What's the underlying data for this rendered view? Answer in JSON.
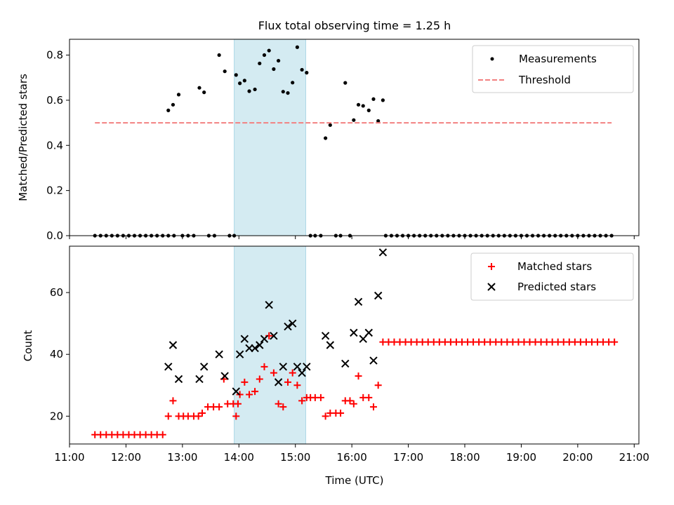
{
  "figure_title": "Flux total observing time = 1.25 h",
  "colors": {
    "measurement": "#000000",
    "threshold": "#f28080",
    "matched": "#ff0000",
    "predicted": "#000000",
    "highlight": "#add8e6"
  },
  "chart_data": [
    {
      "type": "scatter",
      "title": "Flux total observing time = 1.25 h",
      "xlabel": "",
      "ylabel": "Matched/Predicted stars",
      "xlim": [
        "11:00",
        "21:05"
      ],
      "ylim": [
        0,
        0.87
      ],
      "yticks": [
        "0.0",
        "0.2",
        "0.4",
        "0.6",
        "0.8"
      ],
      "grid": false,
      "legend": {
        "placement": "top-right",
        "entries": [
          "Measurements",
          "Threshold"
        ]
      },
      "highlight_span": [
        "13:55",
        "15:11"
      ],
      "series": [
        {
          "name": "Measurements",
          "marker": "dot",
          "points": [
            [
              "11:27",
              0
            ],
            [
              "11:33",
              0
            ],
            [
              "11:39",
              0
            ],
            [
              "11:45",
              0
            ],
            [
              "11:51",
              0
            ],
            [
              "11:57",
              0
            ],
            [
              "12:03",
              0
            ],
            [
              "12:09",
              0
            ],
            [
              "12:15",
              0
            ],
            [
              "12:21",
              0
            ],
            [
              "12:27",
              0
            ],
            [
              "12:33",
              0
            ],
            [
              "12:39",
              0
            ],
            [
              "12:45",
              0
            ],
            [
              "12:51",
              0
            ],
            [
              "12:45",
              0.555
            ],
            [
              "12:50",
              0.58
            ],
            [
              "12:56",
              0.625
            ],
            [
              "13:00",
              0
            ],
            [
              "13:06",
              0
            ],
            [
              "13:12",
              0
            ],
            [
              "13:18",
              0.655
            ],
            [
              "13:23",
              0.635
            ],
            [
              "13:28",
              0
            ],
            [
              "13:34",
              0
            ],
            [
              "13:39",
              0.8
            ],
            [
              "13:45",
              0.728
            ],
            [
              "13:50",
              0
            ],
            [
              "13:55",
              0
            ],
            [
              "13:57",
              0.712
            ],
            [
              "14:01",
              0.675
            ],
            [
              "14:06",
              0.687
            ],
            [
              "14:11",
              0.64
            ],
            [
              "14:17",
              0.648
            ],
            [
              "14:22",
              0.763
            ],
            [
              "14:27",
              0.8
            ],
            [
              "14:32",
              0.82
            ],
            [
              "14:37",
              0.738
            ],
            [
              "14:42",
              0.775
            ],
            [
              "14:47",
              0.638
            ],
            [
              "14:52",
              0.632
            ],
            [
              "14:57",
              0.678
            ],
            [
              "15:02",
              0.835
            ],
            [
              "15:07",
              0.735
            ],
            [
              "15:12",
              0.722
            ],
            [
              "15:16",
              0
            ],
            [
              "15:21",
              0
            ],
            [
              "15:27",
              0
            ],
            [
              "15:32",
              0.432
            ],
            [
              "15:37",
              0.49
            ],
            [
              "15:43",
              0
            ],
            [
              "15:48",
              0
            ],
            [
              "15:53",
              0.677
            ],
            [
              "15:58",
              0
            ],
            [
              "16:02",
              0.512
            ],
            [
              "16:07",
              0.58
            ],
            [
              "16:12",
              0.575
            ],
            [
              "16:18",
              0.555
            ],
            [
              "16:23",
              0.605
            ],
            [
              "16:28",
              0.508
            ],
            [
              "16:33",
              0.6
            ],
            [
              "16:36",
              0
            ],
            [
              "16:42",
              0
            ],
            [
              "16:48",
              0
            ],
            [
              "16:54",
              0
            ],
            [
              "17:00",
              0
            ],
            [
              "17:06",
              0
            ],
            [
              "17:12",
              0
            ],
            [
              "17:18",
              0
            ],
            [
              "17:24",
              0
            ],
            [
              "17:30",
              0
            ],
            [
              "17:36",
              0
            ],
            [
              "17:42",
              0
            ],
            [
              "17:48",
              0
            ],
            [
              "17:54",
              0
            ],
            [
              "18:00",
              0
            ],
            [
              "18:06",
              0
            ],
            [
              "18:12",
              0
            ],
            [
              "18:18",
              0
            ],
            [
              "18:24",
              0
            ],
            [
              "18:30",
              0
            ],
            [
              "18:36",
              0
            ],
            [
              "18:42",
              0
            ],
            [
              "18:48",
              0
            ],
            [
              "18:54",
              0
            ],
            [
              "19:00",
              0
            ],
            [
              "19:06",
              0
            ],
            [
              "19:12",
              0
            ],
            [
              "19:18",
              0
            ],
            [
              "19:24",
              0
            ],
            [
              "19:30",
              0
            ],
            [
              "19:36",
              0
            ],
            [
              "19:42",
              0
            ],
            [
              "19:48",
              0
            ],
            [
              "19:54",
              0
            ],
            [
              "20:00",
              0
            ],
            [
              "20:06",
              0
            ],
            [
              "20:12",
              0
            ],
            [
              "20:18",
              0
            ],
            [
              "20:24",
              0
            ],
            [
              "20:30",
              0
            ],
            [
              "20:36",
              0
            ]
          ]
        },
        {
          "name": "Threshold",
          "style": "dashed",
          "points": [
            [
              "11:27",
              0.5
            ],
            [
              "20:36",
              0.5
            ]
          ]
        }
      ]
    },
    {
      "type": "scatter",
      "title": "",
      "xlabel": "Time (UTC)",
      "ylabel": "Count",
      "xlim": [
        "11:00",
        "21:05"
      ],
      "ylim": [
        11,
        75
      ],
      "xticks": [
        "11:00",
        "12:00",
        "13:00",
        "14:00",
        "15:00",
        "16:00",
        "17:00",
        "18:00",
        "19:00",
        "20:00",
        "21:00"
      ],
      "yticks": [
        "20",
        "40",
        "60"
      ],
      "grid": false,
      "legend": {
        "placement": "top-right",
        "entries": [
          "Matched stars",
          "Predicted stars"
        ]
      },
      "highlight_span": [
        "13:55",
        "15:11"
      ],
      "series": [
        {
          "name": "Matched stars",
          "marker": "plus",
          "points": [
            [
              "11:27",
              14
            ],
            [
              "11:33",
              14
            ],
            [
              "11:39",
              14
            ],
            [
              "11:45",
              14
            ],
            [
              "11:51",
              14
            ],
            [
              "11:57",
              14
            ],
            [
              "12:03",
              14
            ],
            [
              "12:09",
              14
            ],
            [
              "12:15",
              14
            ],
            [
              "12:21",
              14
            ],
            [
              "12:27",
              14
            ],
            [
              "12:33",
              14
            ],
            [
              "12:39",
              14
            ],
            [
              "12:45",
              20
            ],
            [
              "12:50",
              25
            ],
            [
              "12:56",
              20
            ],
            [
              "13:01",
              20
            ],
            [
              "13:06",
              20
            ],
            [
              "13:12",
              20
            ],
            [
              "13:17",
              20
            ],
            [
              "13:21",
              21
            ],
            [
              "13:27",
              23
            ],
            [
              "13:33",
              23
            ],
            [
              "13:39",
              23
            ],
            [
              "13:44",
              32
            ],
            [
              "13:48",
              24
            ],
            [
              "13:54",
              24
            ],
            [
              "13:59",
              24
            ],
            [
              "13:57",
              20
            ],
            [
              "14:01",
              27
            ],
            [
              "14:06",
              31
            ],
            [
              "14:11",
              27
            ],
            [
              "14:17",
              28
            ],
            [
              "14:22",
              32
            ],
            [
              "14:27",
              36
            ],
            [
              "14:32",
              46
            ],
            [
              "14:37",
              34
            ],
            [
              "14:42",
              24
            ],
            [
              "14:47",
              23
            ],
            [
              "14:52",
              31
            ],
            [
              "14:57",
              34
            ],
            [
              "15:02",
              30
            ],
            [
              "15:07",
              25
            ],
            [
              "15:12",
              26
            ],
            [
              "15:16",
              26
            ],
            [
              "15:21",
              26
            ],
            [
              "15:27",
              26
            ],
            [
              "15:32",
              20
            ],
            [
              "15:37",
              21
            ],
            [
              "15:43",
              21
            ],
            [
              "15:48",
              21
            ],
            [
              "15:53",
              25
            ],
            [
              "15:58",
              25
            ],
            [
              "16:02",
              24
            ],
            [
              "16:07",
              33
            ],
            [
              "16:12",
              26
            ],
            [
              "16:18",
              26
            ],
            [
              "16:23",
              23
            ],
            [
              "16:28",
              30
            ],
            [
              "16:33",
              44
            ],
            [
              "16:39",
              44
            ],
            [
              "16:45",
              44
            ],
            [
              "16:51",
              44
            ],
            [
              "16:57",
              44
            ],
            [
              "17:03",
              44
            ],
            [
              "17:09",
              44
            ],
            [
              "17:15",
              44
            ],
            [
              "17:21",
              44
            ],
            [
              "17:27",
              44
            ],
            [
              "17:33",
              44
            ],
            [
              "17:39",
              44
            ],
            [
              "17:45",
              44
            ],
            [
              "17:51",
              44
            ],
            [
              "17:57",
              44
            ],
            [
              "18:03",
              44
            ],
            [
              "18:09",
              44
            ],
            [
              "18:15",
              44
            ],
            [
              "18:21",
              44
            ],
            [
              "18:27",
              44
            ],
            [
              "18:33",
              44
            ],
            [
              "18:39",
              44
            ],
            [
              "18:45",
              44
            ],
            [
              "18:51",
              44
            ],
            [
              "18:57",
              44
            ],
            [
              "19:03",
              44
            ],
            [
              "19:09",
              44
            ],
            [
              "19:15",
              44
            ],
            [
              "19:21",
              44
            ],
            [
              "19:27",
              44
            ],
            [
              "19:33",
              44
            ],
            [
              "19:39",
              44
            ],
            [
              "19:45",
              44
            ],
            [
              "19:51",
              44
            ],
            [
              "19:57",
              44
            ],
            [
              "20:03",
              44
            ],
            [
              "20:09",
              44
            ],
            [
              "20:15",
              44
            ],
            [
              "20:21",
              44
            ],
            [
              "20:27",
              44
            ],
            [
              "20:33",
              44
            ],
            [
              "20:39",
              44
            ]
          ]
        },
        {
          "name": "Predicted stars",
          "marker": "x",
          "points": [
            [
              "12:45",
              36
            ],
            [
              "12:50",
              43
            ],
            [
              "12:56",
              32
            ],
            [
              "13:18",
              32
            ],
            [
              "13:23",
              36
            ],
            [
              "13:39",
              40
            ],
            [
              "13:45",
              33
            ],
            [
              "13:57",
              28
            ],
            [
              "14:01",
              40
            ],
            [
              "14:06",
              45
            ],
            [
              "14:11",
              42
            ],
            [
              "14:17",
              42
            ],
            [
              "14:22",
              43
            ],
            [
              "14:27",
              45
            ],
            [
              "14:32",
              56
            ],
            [
              "14:37",
              46
            ],
            [
              "14:42",
              31
            ],
            [
              "14:47",
              36
            ],
            [
              "14:52",
              49
            ],
            [
              "14:57",
              50
            ],
            [
              "15:02",
              36
            ],
            [
              "15:07",
              34
            ],
            [
              "15:12",
              36
            ],
            [
              "15:32",
              46
            ],
            [
              "15:37",
              43
            ],
            [
              "15:53",
              37
            ],
            [
              "16:02",
              47
            ],
            [
              "16:07",
              57
            ],
            [
              "16:12",
              45
            ],
            [
              "16:18",
              47
            ],
            [
              "16:23",
              38
            ],
            [
              "16:28",
              59
            ],
            [
              "16:33",
              73
            ]
          ]
        }
      ]
    }
  ]
}
